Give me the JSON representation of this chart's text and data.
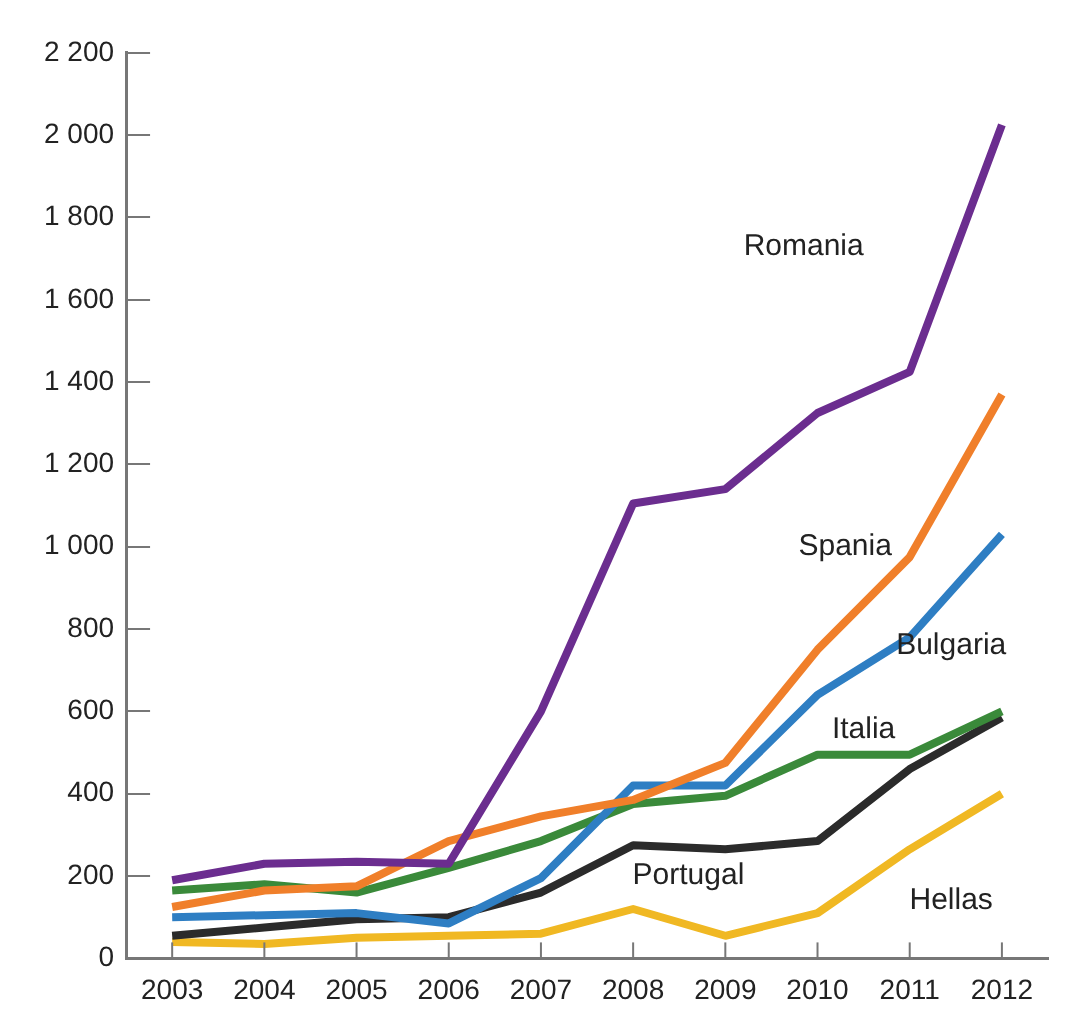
{
  "chart_data": {
    "type": "line",
    "categories": [
      "2003",
      "2004",
      "2005",
      "2006",
      "2007",
      "2008",
      "2009",
      "2010",
      "2011",
      "2012"
    ],
    "series": [
      {
        "name": "Romania",
        "color": "#6b2d8f",
        "values": [
          190,
          230,
          235,
          230,
          600,
          1105,
          1140,
          1325,
          1425,
          2025
        ]
      },
      {
        "name": "Spania",
        "color": "#f07f2a",
        "values": [
          125,
          165,
          175,
          285,
          345,
          385,
          475,
          750,
          975,
          1370
        ]
      },
      {
        "name": "Bulgaria",
        "color": "#2e7ec3",
        "values": [
          100,
          105,
          110,
          85,
          195,
          420,
          420,
          640,
          780,
          1030
        ]
      },
      {
        "name": "Italia",
        "color": "#3a8a3a",
        "values": [
          165,
          180,
          160,
          220,
          285,
          375,
          395,
          495,
          495,
          600
        ]
      },
      {
        "name": "Portugal",
        "color": "#2b2b2b",
        "values": [
          55,
          75,
          95,
          100,
          160,
          275,
          265,
          285,
          460,
          585
        ]
      },
      {
        "name": "Hellas",
        "color": "#f0b823",
        "values": [
          40,
          35,
          50,
          55,
          60,
          120,
          55,
          110,
          265,
          400
        ]
      }
    ],
    "ylim": [
      0,
      2200
    ],
    "yticks": [
      0,
      200,
      400,
      600,
      800,
      {
        "value": 1000,
        "label": "1 000"
      },
      {
        "value": 1200,
        "label": "1 200"
      },
      {
        "value": 1400,
        "label": "1 400"
      },
      {
        "value": 1600,
        "label": "1 600"
      },
      {
        "value": 1800,
        "label": "1 800"
      },
      {
        "value": 2000,
        "label": "2 000"
      },
      {
        "value": 2200,
        "label": "2 200"
      }
    ],
    "grid": false,
    "legend": false,
    "marker": "none",
    "line_style": "solid"
  }
}
